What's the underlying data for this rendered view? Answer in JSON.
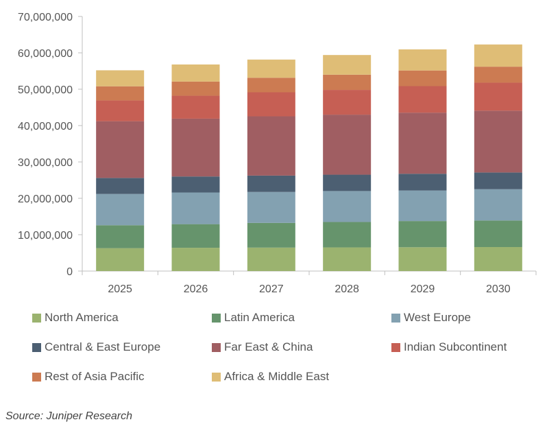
{
  "chart_data": {
    "type": "bar",
    "stacked": true,
    "categories": [
      "2025",
      "2026",
      "2027",
      "2028",
      "2029",
      "2030"
    ],
    "ylim": [
      0,
      70000000
    ],
    "yticks": [
      0,
      10000000,
      20000000,
      30000000,
      40000000,
      50000000,
      60000000,
      70000000
    ],
    "ytick_labels": [
      "0",
      "10,000,000",
      "20,000,000",
      "30,000,000",
      "40,000,000",
      "50,000,000",
      "60,000,000",
      "70,000,000"
    ],
    "legend_position": "bottom",
    "series": [
      {
        "name": "North America",
        "color": "#9bb36f",
        "values": [
          6300000,
          6400000,
          6450000,
          6500000,
          6550000,
          6600000
        ]
      },
      {
        "name": "Latin America",
        "color": "#66946c",
        "values": [
          6300000,
          6500000,
          6800000,
          7000000,
          7200000,
          7300000
        ]
      },
      {
        "name": "West Europe",
        "color": "#83a1b1",
        "values": [
          8600000,
          8700000,
          8500000,
          8500000,
          8400000,
          8600000
        ]
      },
      {
        "name": "Central & East Europe",
        "color": "#4c5f72",
        "values": [
          4400000,
          4400000,
          4500000,
          4500000,
          4600000,
          4600000
        ]
      },
      {
        "name": "Far East & China",
        "color": "#a05e62",
        "values": [
          15600000,
          15900000,
          16300000,
          16500000,
          16800000,
          17000000
        ]
      },
      {
        "name": "Indian Subcontinent",
        "color": "#c65f54",
        "values": [
          5700000,
          6300000,
          6600000,
          6800000,
          7300000,
          7700000
        ]
      },
      {
        "name": "Rest of Asia Pacific",
        "color": "#cc7b52",
        "values": [
          3900000,
          3900000,
          4000000,
          4200000,
          4300000,
          4400000
        ]
      },
      {
        "name": "Africa & Middle East",
        "color": "#dfbd76",
        "values": [
          4400000,
          4700000,
          5000000,
          5400000,
          5800000,
          6100000
        ]
      }
    ]
  },
  "source": "Source: Juniper Research"
}
